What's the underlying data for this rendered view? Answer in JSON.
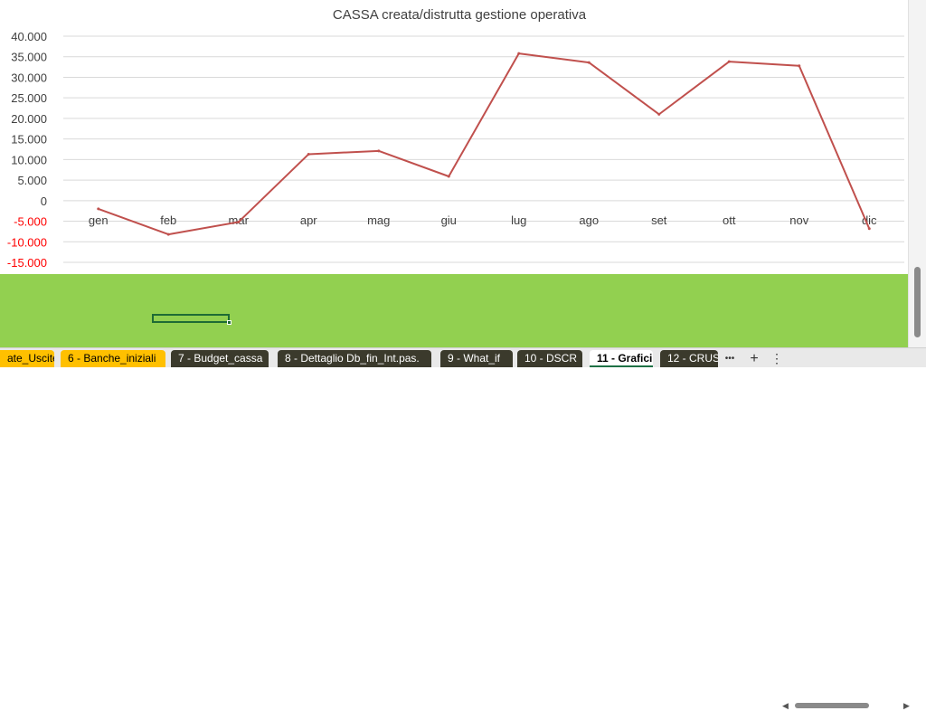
{
  "chart_data": {
    "type": "line",
    "title": "CASSA creata/distrutta gestione operativa",
    "categories": [
      "gen",
      "feb",
      "mar",
      "apr",
      "mag",
      "giu",
      "lug",
      "ago",
      "set",
      "ott",
      "nov",
      "dic"
    ],
    "series": [
      {
        "values": [
          -2000,
          -8200,
          -5200,
          11300,
          12100,
          5900,
          35800,
          33600,
          21000,
          33800,
          32800,
          -6800
        ]
      }
    ],
    "ylim": [
      -15000,
      40000
    ],
    "ytick_labels": [
      "40.000",
      "35.000",
      "30.000",
      "25.000",
      "20.000",
      "15.000",
      "10.000",
      "5.000",
      "0",
      "-5.000",
      "-10.000",
      "-15.000"
    ],
    "grid": true,
    "colors": {
      "line": "#c0504d",
      "negative_labels": "#ff0000",
      "grid": "#d9d9d9"
    }
  },
  "sheet_tabs": [
    {
      "label": "ate_Uscite",
      "style": "yellow"
    },
    {
      "label": "6 - Banche_iniziali",
      "style": "yellow"
    },
    {
      "label": "7 - Budget_cassa",
      "style": "dark"
    },
    {
      "label": "8 - Dettaglio Db_fin_Int.pas.",
      "style": "dark"
    },
    {
      "label": "9 - What_if",
      "style": "dark"
    },
    {
      "label": "10 - DSCR",
      "style": "dark"
    },
    {
      "label": "11 - Grafici",
      "style": "active"
    },
    {
      "label": "12 - CRUS",
      "style": "dark"
    }
  ],
  "tab_controls": {
    "more": "•••",
    "add": "+",
    "options": "⋮"
  },
  "icons": {
    "scroll_left": "left-arrow-icon",
    "scroll_right": "right-arrow-icon"
  }
}
